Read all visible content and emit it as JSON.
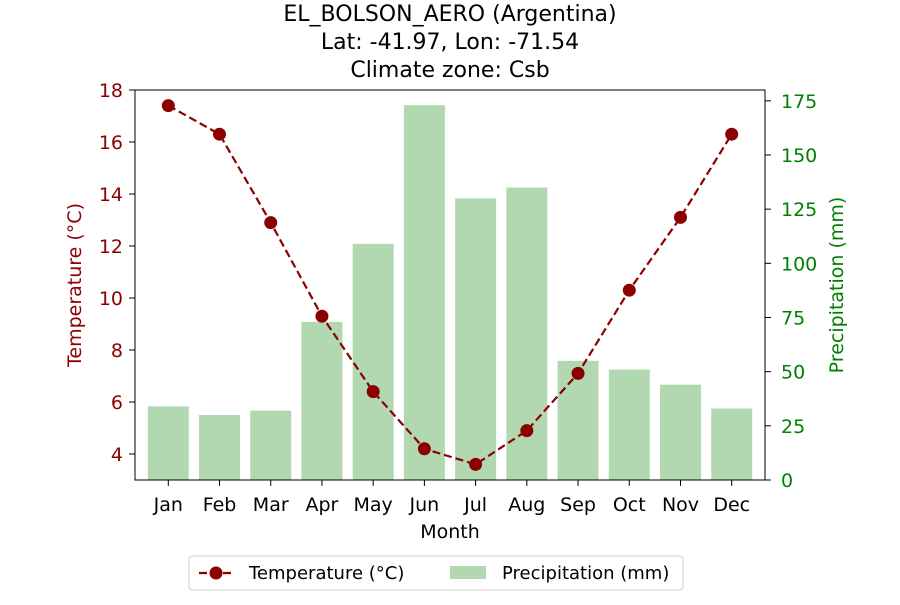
{
  "chart_data": {
    "type": "bar",
    "title_lines": [
      "EL_BOLSON_AERO (Argentina)",
      "Lat: -41.97, Lon: -71.54",
      "Climate zone: Csb"
    ],
    "xlabel": "Month",
    "categories": [
      "Jan",
      "Feb",
      "Mar",
      "Apr",
      "May",
      "Jun",
      "Jul",
      "Aug",
      "Sep",
      "Oct",
      "Nov",
      "Dec"
    ],
    "y_left": {
      "label": "Temperature (°C)",
      "lim": [
        3.0,
        18.0
      ],
      "ticks": [
        4,
        6,
        8,
        10,
        12,
        14,
        16,
        18
      ],
      "color": "#8b0000"
    },
    "y_right": {
      "label": "Precipitation (mm)",
      "lim": [
        0,
        180
      ],
      "ticks": [
        0,
        25,
        50,
        75,
        100,
        125,
        150,
        175
      ],
      "color": "#008000"
    },
    "series": [
      {
        "name": "Temperature (°C)",
        "type": "line",
        "axis": "left",
        "color": "#8b0000",
        "style": "dashed, circle markers",
        "values": [
          17.4,
          16.3,
          12.9,
          9.3,
          6.4,
          4.2,
          3.6,
          4.9,
          7.1,
          10.3,
          13.1,
          16.3
        ]
      },
      {
        "name": "Precipitation (mm)",
        "type": "bar",
        "axis": "right",
        "color": "#b2d8b2",
        "values": [
          34,
          30,
          32,
          73,
          109,
          173,
          130,
          135,
          55,
          51,
          44,
          33
        ]
      }
    ],
    "legend_position": "bottom-center",
    "grid": false
  }
}
